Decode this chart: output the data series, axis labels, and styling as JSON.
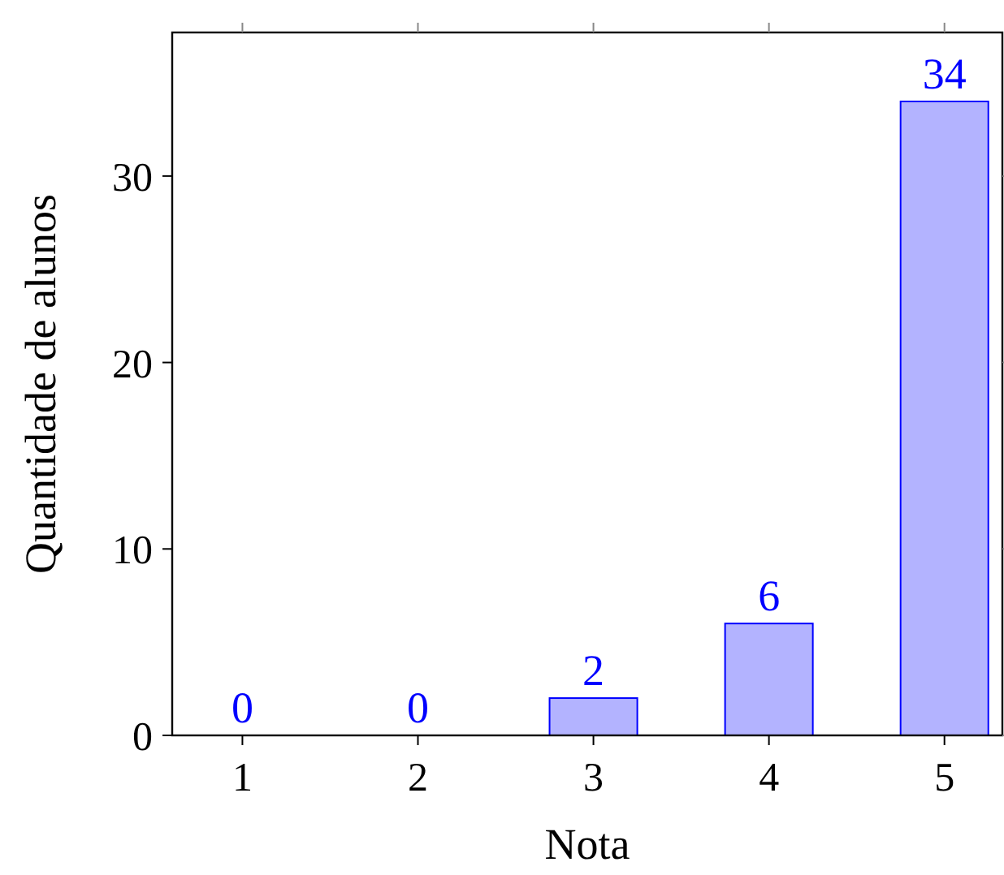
{
  "chart_data": {
    "type": "bar",
    "xlabel": "Nota",
    "ylabel": "Quantidade de alunos",
    "x": [
      1,
      2,
      3,
      4,
      5
    ],
    "values": [
      0,
      0,
      2,
      6,
      34
    ],
    "color": "#b3b3ff",
    "xlim": [
      0.6,
      5.33
    ],
    "xticks": [
      1,
      2,
      3,
      4,
      5
    ],
    "ylim": [
      0,
      37.7
    ],
    "yticks": [
      0,
      10,
      20,
      30
    ],
    "data_labels": true
  }
}
